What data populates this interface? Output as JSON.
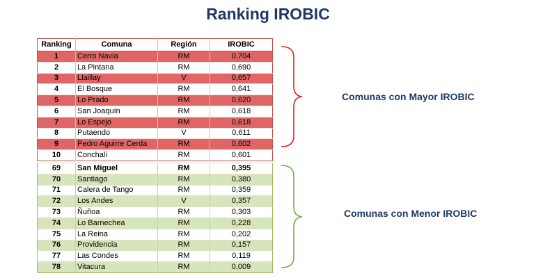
{
  "title": "Ranking IROBIC",
  "headers": [
    "Ranking",
    "Comuna",
    "Región",
    "IROBIC"
  ],
  "top_rows": [
    {
      "rank": "1",
      "comuna": "Cerro Navia",
      "region": "RM",
      "irobic": "0,704"
    },
    {
      "rank": "2",
      "comuna": "La Pintana",
      "region": "RM",
      "irobic": "0,690"
    },
    {
      "rank": "3",
      "comuna": "Llaillay",
      "region": "V",
      "irobic": "0,657"
    },
    {
      "rank": "4",
      "comuna": "El Bosque",
      "region": "RM",
      "irobic": "0,641"
    },
    {
      "rank": "5",
      "comuna": "Lo Prado",
      "region": "RM",
      "irobic": "0,620"
    },
    {
      "rank": "6",
      "comuna": "San Joaquín",
      "region": "RM",
      "irobic": "0,618"
    },
    {
      "rank": "7",
      "comuna": "Lo Espejo",
      "region": "RM",
      "irobic": "0,618"
    },
    {
      "rank": "8",
      "comuna": "Putaendo",
      "region": "V",
      "irobic": "0,611"
    },
    {
      "rank": "9",
      "comuna": "Pedro Aguirre Cerda",
      "region": "RM",
      "irobic": "0,602"
    },
    {
      "rank": "10",
      "comuna": "Conchalí",
      "region": "RM",
      "irobic": "0,601"
    }
  ],
  "bottom_rows": [
    {
      "rank": "69",
      "comuna": "San Miguel",
      "region": "RM",
      "irobic": "0,395"
    },
    {
      "rank": "70",
      "comuna": "Santiago",
      "region": "RM",
      "irobic": "0,380"
    },
    {
      "rank": "71",
      "comuna": "Calera de Tango",
      "region": "RM",
      "irobic": "0,359"
    },
    {
      "rank": "72",
      "comuna": "Los Andes",
      "region": "V",
      "irobic": "0,357"
    },
    {
      "rank": "73",
      "comuna": "Ñuñoa",
      "region": "RM",
      "irobic": "0,303"
    },
    {
      "rank": "74",
      "comuna": "Lo Barnechea",
      "region": "RM",
      "irobic": "0,228"
    },
    {
      "rank": "75",
      "comuna": "La Reina",
      "region": "RM",
      "irobic": "0,202"
    },
    {
      "rank": "76",
      "comuna": "Providencia",
      "region": "RM",
      "irobic": "0,157"
    },
    {
      "rank": "77",
      "comuna": "Las Condes",
      "region": "RM",
      "irobic": "0,119"
    },
    {
      "rank": "78",
      "comuna": "Vitacura",
      "region": "RM",
      "irobic": "0,009"
    }
  ],
  "top_label": "Comunas con Mayor IROBIC",
  "bottom_label": "Comunas con Menor IROBIC",
  "colors": {
    "title": "#1f3864",
    "top_highlight": "#e06666",
    "top_border": "#c0504d",
    "bottom_highlight": "#d8e4bc",
    "bottom_border": "#9bbb59",
    "red_brace": "#e02020",
    "green_brace": "#70ad47"
  }
}
